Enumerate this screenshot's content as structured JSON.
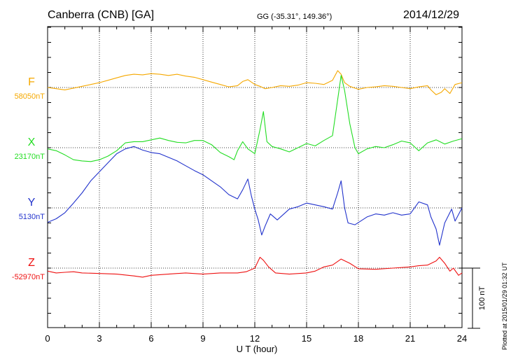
{
  "header": {
    "station": "Canberra (CNB)  [GA]",
    "coords": "GG (-35.31°, 149.36°)",
    "date": "2014/12/29"
  },
  "plotted_note": "Plotted at 2015/01/29 01:32 UT",
  "chart_data": {
    "type": "line",
    "title": "Canberra (CNB)  [GA]",
    "xlabel": "U T (hour)",
    "xlim": [
      0,
      24
    ],
    "xticks": [
      "0",
      "3",
      "6",
      "9",
      "12",
      "15",
      "18",
      "21",
      "24"
    ],
    "grid": true,
    "scale_bar": "100 nT",
    "series": [
      {
        "name": "F",
        "baseline_label": "58050nT",
        "baseline": 58050,
        "color": "#f5a800",
        "x": [
          0,
          0.5,
          1,
          1.5,
          2,
          2.5,
          3,
          3.5,
          4,
          4.5,
          5,
          5.5,
          6,
          6.5,
          7,
          7.5,
          8,
          8.5,
          9,
          9.5,
          10,
          10.5,
          11,
          11.3,
          11.6,
          12,
          12.3,
          12.6,
          13,
          13.5,
          14,
          14.5,
          15,
          15.5,
          16,
          16.5,
          16.8,
          17,
          17.2,
          17.5,
          18,
          18.5,
          19,
          19.5,
          20,
          20.5,
          21,
          21.5,
          22,
          22.2,
          22.5,
          22.8,
          23,
          23.3,
          23.6,
          24
        ],
        "y": [
          58050,
          58048,
          58046,
          58049,
          58052,
          58055,
          58058,
          58062,
          58066,
          58070,
          58072,
          58071,
          58073,
          58072,
          58070,
          58072,
          58069,
          58067,
          58063,
          58059,
          58055,
          58051,
          58053,
          58060,
          58063,
          58055,
          58052,
          58048,
          58050,
          58053,
          58052,
          58054,
          58058,
          58057,
          58055,
          58062,
          58078,
          58072,
          58058,
          58052,
          58047,
          58050,
          58051,
          58053,
          58052,
          58050,
          58048,
          58051,
          58053,
          58046,
          58038,
          58042,
          58048,
          58040,
          58055,
          58058
        ]
      },
      {
        "name": "X",
        "baseline_label": "23170nT",
        "baseline": 23170,
        "color": "#22dd22",
        "x": [
          0,
          0.5,
          1,
          1.5,
          2,
          2.5,
          3,
          3.5,
          4,
          4.5,
          5,
          5.5,
          6,
          6.5,
          7,
          7.5,
          8,
          8.5,
          9,
          9.5,
          10,
          10.5,
          10.8,
          11,
          11.3,
          11.6,
          12,
          12.3,
          12.5,
          12.7,
          13,
          13.5,
          14,
          14.5,
          15,
          15.5,
          16,
          16.5,
          16.8,
          17,
          17.2,
          17.5,
          17.8,
          18,
          18.5,
          19,
          19.5,
          20,
          20.5,
          21,
          21.5,
          22,
          22.5,
          23,
          23.5,
          24
        ],
        "y": [
          23168,
          23165,
          23158,
          23150,
          23148,
          23147,
          23150,
          23156,
          23165,
          23178,
          23180,
          23180,
          23183,
          23186,
          23182,
          23179,
          23178,
          23182,
          23182,
          23175,
          23162,
          23155,
          23150,
          23165,
          23180,
          23168,
          23160,
          23200,
          23230,
          23180,
          23172,
          23168,
          23163,
          23170,
          23177,
          23173,
          23182,
          23190,
          23250,
          23290,
          23265,
          23210,
          23170,
          23160,
          23168,
          23172,
          23170,
          23175,
          23181,
          23178,
          23165,
          23178,
          23183,
          23176,
          23181,
          23185
        ]
      },
      {
        "name": "Y",
        "baseline_label": "5130nT",
        "baseline": 5130,
        "color": "#2233cc",
        "x": [
          0,
          0.5,
          1,
          1.5,
          2,
          2.5,
          3,
          3.5,
          4,
          4.5,
          5,
          5.5,
          6,
          6.5,
          7,
          7.5,
          8,
          8.5,
          9,
          9.5,
          10,
          10.5,
          11,
          11.3,
          11.6,
          11.8,
          12,
          12.2,
          12.4,
          12.6,
          12.9,
          13.3,
          14,
          14.5,
          15,
          15.5,
          16,
          16.5,
          16.8,
          17,
          17.2,
          17.4,
          17.8,
          18.5,
          19,
          19.5,
          20,
          20.5,
          21,
          21.5,
          22,
          22.2,
          22.5,
          22.7,
          23,
          23.4,
          23.6,
          24
        ],
        "y": [
          5106,
          5112,
          5122,
          5138,
          5155,
          5175,
          5190,
          5205,
          5220,
          5228,
          5232,
          5226,
          5222,
          5220,
          5214,
          5208,
          5200,
          5192,
          5185,
          5175,
          5165,
          5152,
          5145,
          5160,
          5178,
          5150,
          5128,
          5110,
          5085,
          5100,
          5120,
          5110,
          5128,
          5132,
          5138,
          5135,
          5132,
          5128,
          5155,
          5175,
          5130,
          5105,
          5102,
          5115,
          5120,
          5118,
          5122,
          5118,
          5120,
          5140,
          5135,
          5115,
          5095,
          5068,
          5105,
          5128,
          5108,
          5130
        ]
      },
      {
        "name": "Z",
        "baseline_label": "-52970nT",
        "baseline": -52970,
        "color": "#ee1111",
        "x": [
          0,
          0.5,
          1,
          1.5,
          2,
          3,
          4,
          5,
          5.5,
          6,
          7,
          8,
          9,
          10,
          11,
          11.5,
          12,
          12.3,
          12.5,
          12.8,
          13.2,
          14,
          15,
          15.5,
          16,
          16.5,
          17,
          17.5,
          18,
          19,
          20,
          21,
          21.5,
          22,
          22.5,
          22.7,
          23,
          23.3,
          23.5,
          23.8,
          24
        ],
        "y": [
          -52975,
          -52978,
          -52977,
          -52976,
          -52978,
          -52979,
          -52980,
          -52983,
          -52985,
          -52982,
          -52980,
          -52978,
          -52980,
          -52978,
          -52978,
          -52976,
          -52970,
          -52952,
          -52957,
          -52968,
          -52978,
          -52980,
          -52978,
          -52975,
          -52968,
          -52965,
          -52955,
          -52962,
          -52971,
          -52972,
          -52970,
          -52968,
          -52966,
          -52965,
          -52958,
          -52952,
          -52962,
          -52975,
          -52970,
          -52982,
          -52978
        ]
      }
    ]
  }
}
